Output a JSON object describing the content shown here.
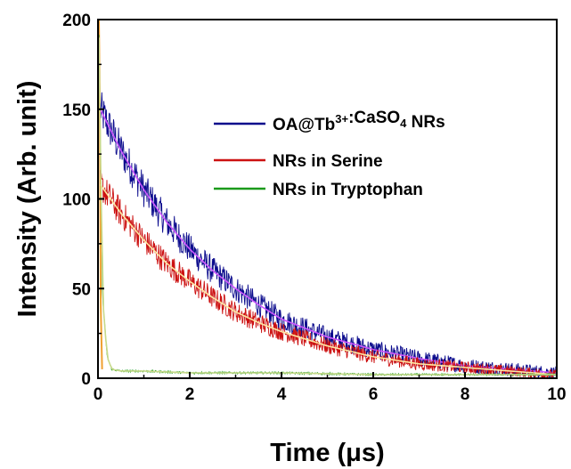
{
  "chart_data": {
    "type": "line",
    "xlabel": "Time (μs)",
    "ylabel": "Intensity (Arb. unit)",
    "xlim": [
      0,
      10
    ],
    "ylim": [
      0,
      200
    ],
    "xticks": [
      0,
      2,
      4,
      6,
      8,
      10
    ],
    "yticks": [
      0,
      50,
      100,
      150,
      200
    ],
    "grid": false,
    "legend_position": "top-right",
    "series": [
      {
        "name": "OA@Tb3+:CaSO4 NRs",
        "legend": {
          "main": "OA@Tb",
          "sup": "3+",
          "mid": ":CaSO",
          "sub": "4",
          "tail": " NRs"
        },
        "color": "#0a0a8c",
        "fit_color": "#cc55ff",
        "x": [
          0.05,
          0.5,
          1,
          1.5,
          2,
          2.5,
          3,
          3.5,
          4,
          5,
          6,
          7,
          8,
          9,
          10
        ],
        "y": [
          150,
          127,
          105,
          87,
          72,
          60,
          50,
          41,
          33,
          23,
          16,
          11,
          7,
          5,
          3
        ],
        "fit_decay_us": 2.1,
        "noise": 9
      },
      {
        "name": "NRs in Serine",
        "color": "#cc1111",
        "fit_color": "#ffe6a0",
        "x": [
          0.05,
          0.5,
          1,
          1.5,
          2,
          2.5,
          3,
          3.5,
          4,
          5,
          6,
          7,
          8,
          9,
          10
        ],
        "y": [
          108,
          92,
          77,
          64,
          54,
          45,
          37,
          31,
          26,
          18,
          12,
          8,
          6,
          4,
          2
        ],
        "fit_decay_us": 2.15,
        "noise": 7
      },
      {
        "name": "NRs in Tryptophan",
        "color": "#1a9a1a",
        "fit_color": "#c8d98a",
        "x": [
          0.02,
          0.1,
          0.2,
          0.3,
          0.5,
          1,
          2,
          4,
          6,
          8,
          10
        ],
        "y": [
          190,
          45,
          12,
          5,
          4,
          4,
          3,
          3,
          2,
          2,
          2
        ],
        "noise": 1.5
      }
    ],
    "artifact_colors": {
      "spike": "#f0a030"
    }
  }
}
